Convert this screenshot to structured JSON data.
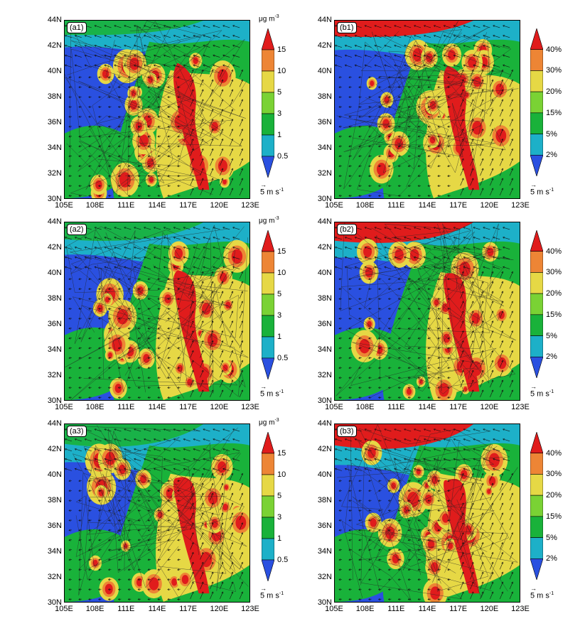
{
  "chart_data": {
    "type": "heatmap",
    "x_ticks": [
      "105E",
      "108E",
      "111E",
      "114E",
      "117E",
      "120E",
      "123E"
    ],
    "y_ticks": [
      "44N",
      "42N",
      "40N",
      "38N",
      "36N",
      "34N",
      "32N",
      "30N"
    ],
    "wind_reference": "5 m s",
    "wind_reference_exp": "-1",
    "colors": [
      "#2a50e0",
      "#1db0c8",
      "#19b23a",
      "#7ad234",
      "#e6d845",
      "#ed8535",
      "#e01c1c"
    ],
    "panels": [
      {
        "id": "a1",
        "label": "(a1)",
        "unit": "μg m",
        "unit_exp": "-3",
        "colorbar_labels": [
          "15",
          "10",
          "5",
          "3",
          "1",
          "0.5"
        ]
      },
      {
        "id": "b1",
        "label": "(b1)",
        "unit": "",
        "unit_exp": "",
        "colorbar_labels": [
          "40%",
          "30%",
          "20%",
          "15%",
          "5%",
          "2%"
        ]
      },
      {
        "id": "a2",
        "label": "(a2)",
        "unit": "μg m",
        "unit_exp": "-3",
        "colorbar_labels": [
          "15",
          "10",
          "5",
          "3",
          "1",
          "0.5"
        ]
      },
      {
        "id": "b2",
        "label": "(b2)",
        "unit": "",
        "unit_exp": "",
        "colorbar_labels": [
          "40%",
          "30%",
          "20%",
          "15%",
          "5%",
          "2%"
        ]
      },
      {
        "id": "a3",
        "label": "(a3)",
        "unit": "μg m",
        "unit_exp": "-3",
        "colorbar_labels": [
          "15",
          "10",
          "5",
          "3",
          "1",
          "0.5"
        ]
      },
      {
        "id": "b3",
        "label": "(b3)",
        "unit": "",
        "unit_exp": "",
        "colorbar_labels": [
          "40%",
          "30%",
          "20%",
          "15%",
          "5%",
          "2%"
        ]
      }
    ]
  }
}
